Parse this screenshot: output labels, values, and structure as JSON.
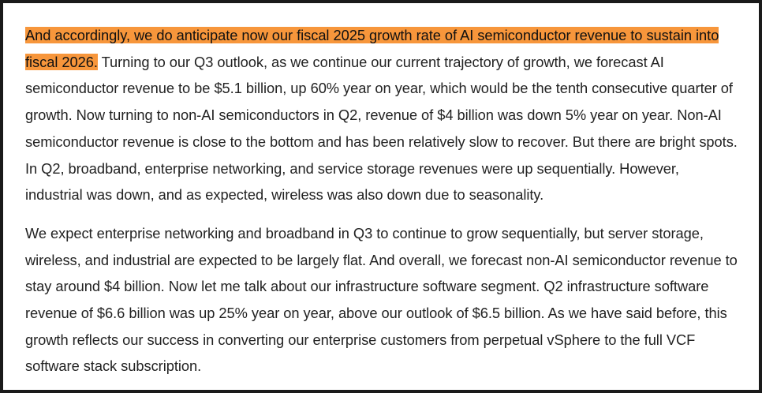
{
  "document": {
    "paragraph1": {
      "highlighted": "And accordingly, we do anticipate now our fiscal 2025 growth rate of AI semiconductor revenue to sustain into fiscal 2026.",
      "rest": " Turning to our Q3 outlook, as we continue our current trajectory of growth, we forecast AI semiconductor revenue to be $5.1 billion, up 60% year on year, which would be the tenth consecutive quarter of growth. Now turning to non-AI semiconductors in Q2, revenue of $4 billion was down 5% year on year. Non-AI semiconductor revenue is close to the bottom and has been relatively slow to recover. But there are bright spots. In Q2, broadband, enterprise networking, and service storage revenues were up sequentially. However, industrial was down, and as expected, wireless was also down due to seasonality."
    },
    "paragraph2": "We expect enterprise networking and broadband in Q3 to continue to grow sequentially, but server storage, wireless, and industrial are expected to be largely flat. And overall, we forecast non-AI semiconductor revenue to stay around $4 billion. Now let me talk about our infrastructure software segment. Q2 infrastructure software revenue of $6.6 billion was up 25% year on year, above our outlook of $6.5 billion. As we have said before, this growth reflects our success in converting our enterprise customers from perpetual vSphere to the full VCF software stack subscription.",
    "colors": {
      "highlight": "#f7963b",
      "text": "#222222",
      "frame": "#1a1a1a",
      "background": "#ffffff"
    }
  }
}
